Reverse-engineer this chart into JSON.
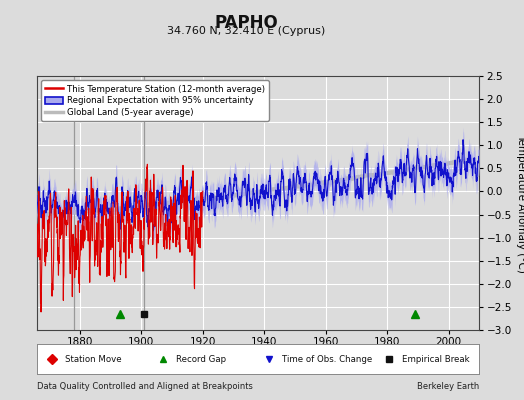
{
  "title": "PAPHO",
  "subtitle": "34.760 N, 32.410 E (Cyprus)",
  "ylabel": "Temperature Anomaly (°C)",
  "footer_left": "Data Quality Controlled and Aligned at Breakpoints",
  "footer_right": "Berkeley Earth",
  "xlim": [
    1866,
    2010
  ],
  "ylim": [
    -3.0,
    2.5
  ],
  "yticks": [
    -3,
    -2.5,
    -2,
    -1.5,
    -1,
    -0.5,
    0,
    0.5,
    1,
    1.5,
    2,
    2.5
  ],
  "xticks": [
    1880,
    1900,
    1920,
    1940,
    1960,
    1980,
    2000
  ],
  "bg_color": "#dcdcdc",
  "plot_bg_color": "#dcdcdc",
  "grid_color": "#ffffff",
  "station_color": "#dd0000",
  "regional_color": "#1111cc",
  "regional_fill_color": "#aaaaee",
  "global_color": "#bbbbbb",
  "vline_color": "#999999",
  "station_end_year": 1920,
  "seed": 17,
  "start_year": 1866,
  "end_year": 2009
}
